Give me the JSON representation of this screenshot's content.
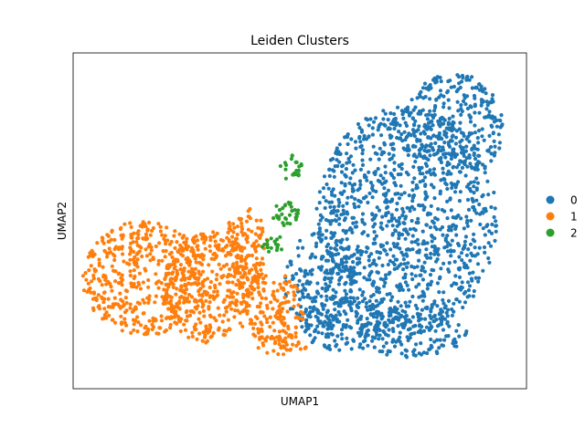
{
  "chart_data": {
    "type": "scatter",
    "title": "Leiden Clusters",
    "xlabel": "UMAP1",
    "ylabel": "UMAP2",
    "xlim": [
      0,
      100
    ],
    "ylim": [
      0,
      100
    ],
    "grid": false,
    "axis_ticks": false,
    "legend": {
      "position": "right",
      "entries": [
        {
          "label": "0",
          "color": "#1f77b4"
        },
        {
          "label": "1",
          "color": "#ff7f0e"
        },
        {
          "label": "2",
          "color": "#2ca02c"
        }
      ]
    },
    "series": [
      {
        "name": "0",
        "color": "#1f77b4",
        "point_count": 1900,
        "regions": [
          {
            "cx": 73.5,
            "cy": 50,
            "rx": 20,
            "ry": 34
          },
          {
            "cx": 84,
            "cy": 78,
            "rx": 11,
            "ry": 16
          },
          {
            "cx": 54.5,
            "cy": 32,
            "rx": 8,
            "ry": 15
          },
          {
            "cx": 60,
            "cy": 19,
            "rx": 10,
            "ry": 8
          },
          {
            "cx": 75,
            "cy": 17,
            "rx": 12,
            "ry": 8
          }
        ]
      },
      {
        "name": "1",
        "color": "#ff7f0e",
        "point_count": 1100,
        "regions": [
          {
            "cx": 16,
            "cy": 33,
            "rx": 14,
            "ry": 17
          },
          {
            "cx": 30,
            "cy": 30,
            "rx": 10,
            "ry": 17
          },
          {
            "cx": 38,
            "cy": 42,
            "rx": 5,
            "ry": 12
          },
          {
            "cx": 44,
            "cy": 24,
            "rx": 7,
            "ry": 11
          },
          {
            "cx": 46,
            "cy": 13,
            "rx": 6,
            "ry": 3
          }
        ]
      },
      {
        "name": "2",
        "color": "#2ca02c",
        "point_count": 70,
        "regions": [
          {
            "cx": 48,
            "cy": 66,
            "rx": 2.5,
            "ry": 4
          },
          {
            "cx": 47.5,
            "cy": 52,
            "rx": 3.5,
            "ry": 4
          },
          {
            "cx": 44,
            "cy": 43,
            "rx": 2.5,
            "ry": 3
          }
        ]
      }
    ]
  }
}
